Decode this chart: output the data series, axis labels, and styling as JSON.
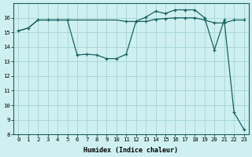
{
  "xlabel": "Humidex (Indice chaleur)",
  "bg_color": "#cff0f0",
  "grid_color": "#a8d8d8",
  "line_color": "#1a6060",
  "xlim": [
    -0.5,
    23.5
  ],
  "ylim": [
    8,
    17
  ],
  "ytick_min": 8,
  "ytick_max": 16,
  "xticks": [
    0,
    1,
    2,
    3,
    4,
    5,
    6,
    7,
    8,
    9,
    10,
    11,
    12,
    13,
    14,
    15,
    16,
    17,
    18,
    19,
    20,
    21,
    22,
    23
  ],
  "yticks": [
    8,
    9,
    10,
    11,
    12,
    13,
    14,
    15,
    16
  ],
  "line1_x": [
    0,
    1,
    2,
    3,
    4,
    5,
    6,
    7,
    8,
    9,
    10,
    11,
    12,
    13,
    14,
    15,
    16,
    17,
    18,
    19,
    20,
    21,
    22,
    23
  ],
  "line1_y": [
    15.1,
    15.3,
    15.85,
    15.85,
    15.85,
    15.85,
    15.85,
    15.85,
    15.85,
    15.85,
    15.85,
    15.75,
    15.75,
    15.75,
    15.9,
    15.95,
    16.0,
    16.0,
    16.0,
    15.85,
    15.65,
    15.65,
    15.85,
    15.85
  ],
  "line1_markers": [
    0,
    1,
    2,
    3,
    4,
    5,
    11,
    12,
    13,
    14,
    15,
    16,
    17,
    18,
    19,
    20,
    21,
    22,
    23
  ],
  "line2_x": [
    0,
    1,
    2,
    3,
    4,
    5,
    6,
    7,
    8,
    9,
    10,
    11,
    12,
    13,
    14,
    15,
    16,
    17,
    18,
    19,
    20,
    21,
    22,
    23
  ],
  "line2_y": [
    15.1,
    15.3,
    15.85,
    15.85,
    15.85,
    15.85,
    13.45,
    13.5,
    13.45,
    13.2,
    13.2,
    13.5,
    15.75,
    16.05,
    16.45,
    16.3,
    16.55,
    16.55,
    16.55,
    16.0,
    13.8,
    15.85,
    9.5,
    8.35
  ],
  "line2_markers": [
    6,
    7,
    8,
    9,
    10,
    11,
    12,
    13,
    14,
    15,
    16,
    17,
    18,
    19,
    20,
    21,
    22,
    23
  ],
  "xlabel_fontsize": 6.0,
  "tick_fontsize": 5.2
}
